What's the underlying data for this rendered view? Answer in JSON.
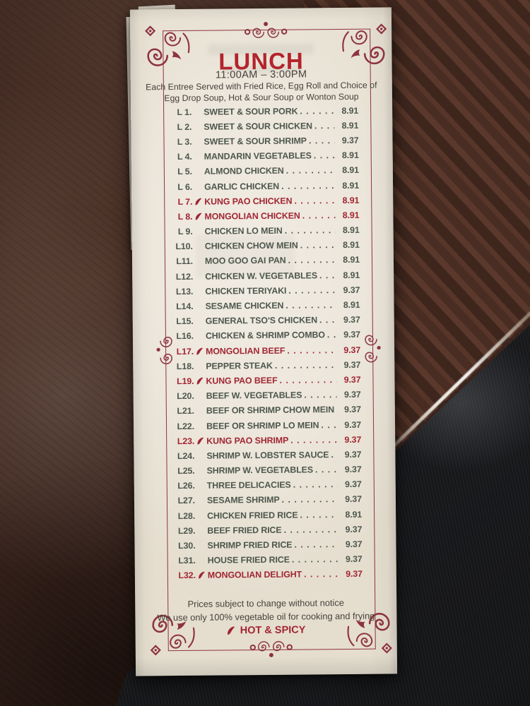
{
  "menu": {
    "title": "LUNCH",
    "hours": "11:00AM – 3:00PM",
    "note_line1": "Each Entree Served with Fried Rice, Egg Roll and Choice of",
    "note_line2": "Egg Drop Soup, Hot & Sour Soup or Wonton Soup",
    "items": [
      {
        "num": "L 1.",
        "name": "SWEET & SOUR PORK",
        "price": "8.91",
        "spicy": false
      },
      {
        "num": "L 2.",
        "name": "SWEET & SOUR CHICKEN",
        "price": "8.91",
        "spicy": false
      },
      {
        "num": "L 3.",
        "name": "SWEET & SOUR SHRIMP",
        "price": "9.37",
        "spicy": false
      },
      {
        "num": "L 4.",
        "name": "MANDARIN VEGETABLES",
        "price": "8.91",
        "spicy": false
      },
      {
        "num": "L 5.",
        "name": "ALMOND CHICKEN",
        "price": "8.91",
        "spicy": false
      },
      {
        "num": "L 6.",
        "name": "GARLIC CHICKEN",
        "price": "8.91",
        "spicy": false
      },
      {
        "num": "L 7.",
        "name": "KUNG PAO CHICKEN",
        "price": "8.91",
        "spicy": true
      },
      {
        "num": "L 8.",
        "name": "MONGOLIAN CHICKEN",
        "price": "8.91",
        "spicy": true
      },
      {
        "num": "L 9.",
        "name": "CHICKEN LO MEIN",
        "price": "8.91",
        "spicy": false
      },
      {
        "num": "L10.",
        "name": "CHICKEN CHOW MEIN",
        "price": "8.91",
        "spicy": false
      },
      {
        "num": "L11.",
        "name": "MOO GOO GAI PAN",
        "price": "8.91",
        "spicy": false
      },
      {
        "num": "L12.",
        "name": "CHICKEN W. VEGETABLES",
        "price": "8.91",
        "spicy": false
      },
      {
        "num": "L13.",
        "name": "CHICKEN TERIYAKI",
        "price": "9.37",
        "spicy": false
      },
      {
        "num": "L14.",
        "name": "SESAME CHICKEN",
        "price": "8.91",
        "spicy": false
      },
      {
        "num": "L15.",
        "name": "GENERAL TSO'S CHICKEN",
        "price": "9.37",
        "spicy": false
      },
      {
        "num": "L16.",
        "name": "CHICKEN & SHRIMP COMBO",
        "price": "9.37",
        "spicy": false
      },
      {
        "num": "L17.",
        "name": "MONGOLIAN BEEF",
        "price": "9.37",
        "spicy": true
      },
      {
        "num": "L18.",
        "name": "PEPPER STEAK",
        "price": "9.37",
        "spicy": false
      },
      {
        "num": "L19.",
        "name": "KUNG PAO BEEF",
        "price": "9.37",
        "spicy": true
      },
      {
        "num": "L20.",
        "name": "BEEF W. VEGETABLES",
        "price": "9.37",
        "spicy": false
      },
      {
        "num": "L21.",
        "name": "BEEF OR SHRIMP CHOW MEIN",
        "price": "9.37",
        "spicy": false
      },
      {
        "num": "L22.",
        "name": "BEEF OR SHRIMP LO MEIN",
        "price": "9.37",
        "spicy": false
      },
      {
        "num": "L23.",
        "name": "KUNG PAO SHRIMP",
        "price": "9.37",
        "spicy": true
      },
      {
        "num": "L24.",
        "name": "SHRIMP W. LOBSTER SAUCE",
        "price": "9.37",
        "spicy": false
      },
      {
        "num": "L25.",
        "name": "SHRIMP W. VEGETABLES",
        "price": "9.37",
        "spicy": false
      },
      {
        "num": "L26.",
        "name": "THREE DELICACIES",
        "price": "9.37",
        "spicy": false
      },
      {
        "num": "L27.",
        "name": "SESAME SHRIMP",
        "price": "9.37",
        "spicy": false
      },
      {
        "num": "L28.",
        "name": "CHICKEN FRIED RICE",
        "price": "8.91",
        "spicy": false
      },
      {
        "num": "L29.",
        "name": "BEEF FRIED RICE",
        "price": "9.37",
        "spicy": false
      },
      {
        "num": "L30.",
        "name": "SHRIMP FRIED RICE",
        "price": "9.37",
        "spicy": false
      },
      {
        "num": "L31.",
        "name": "HOUSE FRIED RICE",
        "price": "9.37",
        "spicy": false
      },
      {
        "num": "L32.",
        "name": "MONGOLIAN DELIGHT",
        "price": "9.37",
        "spicy": true
      }
    ],
    "footer": {
      "line1": "Prices subject to change without notice",
      "line2": "We use only 100% vegetable oil for cooking and frying",
      "hot_spicy_label": "HOT & SPICY"
    },
    "icons": {
      "spicy_marker": "chili-pepper-icon",
      "border_decoration": "scroll-flourish-icon"
    },
    "colors": {
      "accent_red": "#b3242c",
      "border_red": "#8e3340",
      "item_text": "#4d574d",
      "spicy_red": "#a12633",
      "paper": "#ece6db"
    }
  }
}
